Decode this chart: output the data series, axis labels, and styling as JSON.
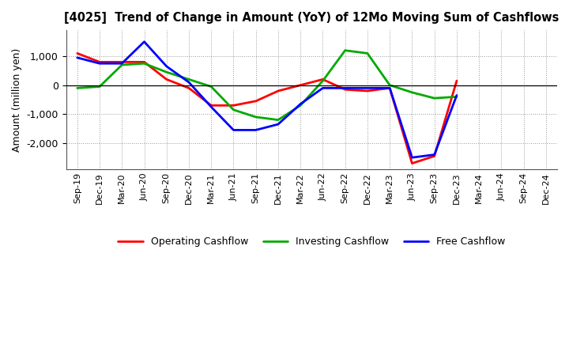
{
  "title": "[4025]  Trend of Change in Amount (YoY) of 12Mo Moving Sum of Cashflows",
  "ylabel": "Amount (million yen)",
  "x_labels": [
    "Sep-19",
    "Dec-19",
    "Mar-20",
    "Jun-20",
    "Sep-20",
    "Dec-20",
    "Mar-21",
    "Jun-21",
    "Sep-21",
    "Dec-21",
    "Mar-22",
    "Jun-22",
    "Sep-22",
    "Dec-22",
    "Mar-23",
    "Jun-23",
    "Sep-23",
    "Dec-23",
    "Mar-24",
    "Jun-24",
    "Sep-24",
    "Dec-24"
  ],
  "operating": [
    1100,
    800,
    800,
    800,
    200,
    -100,
    -700,
    -700,
    -550,
    -200,
    0,
    200,
    -150,
    -200,
    -100,
    -2700,
    -2450,
    150,
    null,
    null,
    null,
    null
  ],
  "investing": [
    -100,
    -50,
    700,
    750,
    450,
    200,
    -50,
    -850,
    -1100,
    -1200,
    -700,
    150,
    1200,
    1100,
    0,
    -250,
    -450,
    -400,
    null,
    null,
    null,
    null
  ],
  "free": [
    950,
    750,
    750,
    1500,
    650,
    100,
    -750,
    -1550,
    -1550,
    -1350,
    -650,
    -100,
    -100,
    -100,
    -100,
    -2500,
    -2400,
    -350,
    null,
    null,
    null,
    null
  ],
  "operating_color": "#ff0000",
  "investing_color": "#00aa00",
  "free_color": "#0000ff",
  "ylim": [
    -2900,
    1900
  ],
  "yticks": [
    -2000,
    -1000,
    0,
    1000
  ],
  "background_color": "#ffffff",
  "grid_color": "#999999",
  "linewidth": 2.0
}
